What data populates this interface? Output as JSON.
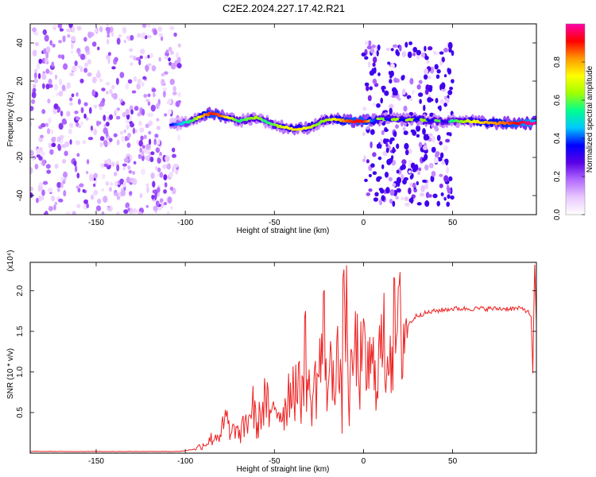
{
  "figure_title": "C2E2.2024.227.17.42.R21",
  "chart_data": [
    {
      "type": "heatmap",
      "title": "C2E2.2024.227.17.42.R21",
      "xlabel": "Height of straight line (km)",
      "ylabel": "Frequency (Hz)",
      "xlim": [
        -187,
        97
      ],
      "ylim": [
        -50,
        50
      ],
      "xticks": [
        -150,
        -100,
        -50,
        0,
        50
      ],
      "yticks": [
        -40,
        -20,
        0,
        20,
        40
      ],
      "xtick_labels": [
        "-150",
        "-100",
        "-50",
        "0",
        "50"
      ],
      "ytick_labels": [
        "-40",
        "-20",
        "0",
        "20",
        "40"
      ],
      "colorbar": {
        "label": "Normalized spectral amplitude",
        "range": [
          0,
          1
        ],
        "ticks": [
          0.0,
          0.2,
          0.4,
          0.6,
          0.8
        ],
        "tick_labels": [
          "0.0",
          "0.2",
          "0.4",
          "0.6",
          "0.8"
        ],
        "colors": [
          "#ffffff",
          "#e9c8ff",
          "#b36bff",
          "#5a00e6",
          "#0000ff",
          "#00c8ff",
          "#00ff90",
          "#a0ff00",
          "#ffff00",
          "#ff9900",
          "#ff0000",
          "#ff00aa"
        ]
      },
      "regions": [
        {
          "x_range": [
            -187,
            -103
          ],
          "description": "broadband noise",
          "freq_range": [
            -50,
            50
          ],
          "amplitude": [
            0.0,
            0.25
          ]
        },
        {
          "x_range": [
            -110,
            0
          ],
          "description": "signal track",
          "center_freq": [
            -2,
            2
          ],
          "amplitude": [
            0.3,
            1.0
          ]
        },
        {
          "x_range": [
            0,
            50
          ],
          "description": "pulsed signal with sidebands",
          "freq_range": [
            -45,
            40
          ],
          "amplitude": [
            0.0,
            0.9
          ]
        },
        {
          "x_range": [
            50,
            97
          ],
          "description": "stable signal",
          "center_freq": -2,
          "amplitude": [
            0.6,
            1.0
          ]
        }
      ],
      "track": {
        "x": [
          -108,
          -100,
          -95,
          -90,
          -85,
          -80,
          -75,
          -70,
          -65,
          -60,
          -55,
          -50,
          -45,
          -40,
          -35,
          -30,
          -25,
          -20,
          -15,
          -10,
          -5,
          0,
          10,
          20,
          30,
          40,
          50,
          60,
          70,
          80,
          90,
          97
        ],
        "freq": [
          -3,
          -2,
          0,
          2,
          3,
          2,
          1,
          -1,
          0,
          1,
          -1,
          -3,
          -4,
          -5,
          -5,
          -4,
          -2,
          0,
          0,
          -1,
          -1,
          -1,
          0,
          0,
          0,
          -1,
          -1,
          -1,
          -2,
          -2,
          -2,
          -2
        ],
        "amplitude": [
          0.35,
          0.5,
          0.6,
          0.8,
          0.9,
          0.85,
          0.7,
          0.55,
          0.6,
          0.65,
          0.55,
          0.6,
          0.7,
          0.75,
          0.75,
          0.7,
          0.6,
          0.65,
          0.75,
          0.85,
          0.9,
          0.9,
          0.6,
          0.65,
          0.65,
          0.6,
          0.55,
          0.7,
          0.8,
          0.85,
          0.95,
          1.0
        ]
      }
    },
    {
      "type": "line",
      "title": "",
      "xlabel": "Height of straight line (km)",
      "ylabel": "SNR (10 * v/v)",
      "y_multiplier": "(x10⁴)",
      "xlim": [
        -187,
        97
      ],
      "ylim": [
        0,
        2.35
      ],
      "xticks": [
        -150,
        -100,
        -50,
        0,
        50
      ],
      "yticks": [
        0.5,
        1.0,
        1.5,
        2.0
      ],
      "xtick_labels": [
        "-150",
        "-100",
        "-50",
        "0",
        "50"
      ],
      "ytick_labels": [
        "0.5",
        "1.0",
        "1.5",
        "2.0"
      ],
      "series": [
        {
          "color": "#ee2222",
          "x": [
            -187,
            -150,
            -120,
            -105,
            -100,
            -95,
            -90,
            -85,
            -80,
            -76,
            -75,
            -72,
            -70,
            -65,
            -62,
            -60,
            -55,
            -52,
            -50,
            -45,
            -40,
            -35,
            -33,
            -30,
            -25,
            -22,
            -20,
            -15,
            -12,
            -11,
            -10,
            -8,
            -5,
            -2,
            0,
            5,
            10,
            15,
            20,
            25,
            30,
            40,
            50,
            60,
            70,
            80,
            90,
            94,
            95,
            96,
            97
          ],
          "y": [
            0.02,
            0.02,
            0.02,
            0.02,
            0.03,
            0.05,
            0.1,
            0.18,
            0.25,
            0.45,
            0.15,
            0.35,
            0.2,
            0.4,
            0.6,
            0.3,
            0.7,
            0.35,
            0.6,
            0.5,
            0.9,
            0.7,
            1.3,
            0.6,
            1.0,
            1.45,
            0.8,
            1.3,
            0.5,
            2.35,
            1.9,
            0.6,
            1.3,
            1.05,
            1.1,
            1.0,
            1.25,
            1.4,
            1.5,
            1.58,
            1.7,
            1.75,
            1.78,
            1.78,
            1.78,
            1.78,
            1.78,
            1.7,
            0.98,
            2.3,
            1.6
          ]
        }
      ]
    }
  ]
}
